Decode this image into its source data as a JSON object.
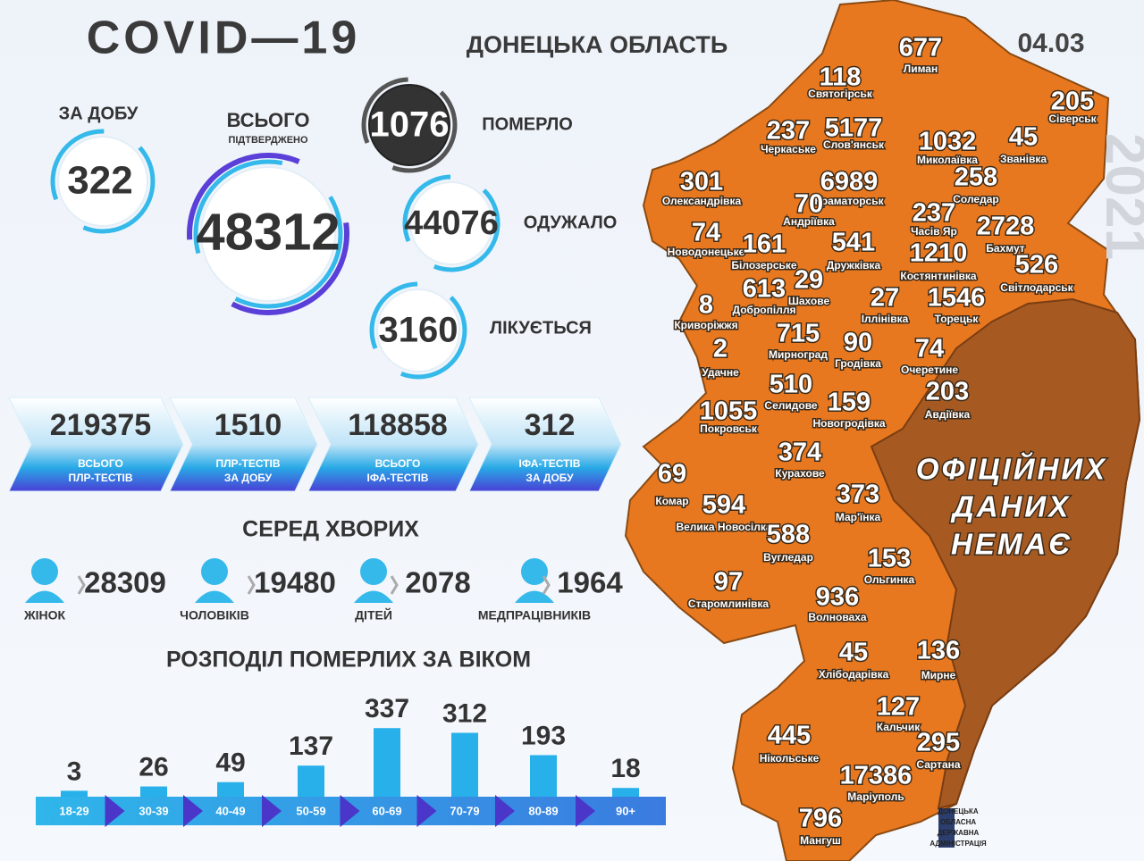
{
  "header": {
    "title": "COVID—19",
    "region": "ДОНЕЦЬКА ОБЛАСТЬ",
    "date": "04.03",
    "year": "2021"
  },
  "summary": {
    "daily": {
      "label": "ЗА ДОБУ",
      "value": 322
    },
    "total": {
      "label": "ВСЬОГО",
      "sublabel": "ПІДТВЕРДЖЕНО",
      "value": 48312
    },
    "died": {
      "label": "ПОМЕРЛО",
      "value": 1076
    },
    "recovered": {
      "label": "ОДУЖАЛО",
      "value": 44076
    },
    "treated": {
      "label": "ЛІКУЄТЬСЯ",
      "value": 3160
    }
  },
  "tests": [
    {
      "value": 219375,
      "label": [
        "ВСЬОГО",
        "ПЛР-ТЕСТІВ"
      ]
    },
    {
      "value": 1510,
      "label": [
        "ПЛР-ТЕСТІВ",
        "ЗА ДОБУ"
      ]
    },
    {
      "value": 118858,
      "label": [
        "ВСЬОГО",
        "ІФА-ТЕСТІВ"
      ]
    },
    {
      "value": 312,
      "label": [
        "ІФА-ТЕСТІВ",
        "ЗА ДОБУ"
      ]
    }
  ],
  "among_sick": {
    "title": "СЕРЕД ХВОРИХ",
    "groups": [
      {
        "label": "ЖІНОК",
        "value": 28309
      },
      {
        "label": "ЧОЛОВІКІВ",
        "value": 19480
      },
      {
        "label": "ДІТЕЙ",
        "value": 2078
      },
      {
        "label": "МЕДПРАЦІВНИКІВ",
        "value": 1964
      }
    ]
  },
  "deaths_by_age": {
    "title": "РОЗПОДІЛ ПОМЕРЛИХ ЗА ВІКОМ",
    "groups": [
      {
        "label": "18-29",
        "value": 3
      },
      {
        "label": "30-39",
        "value": 26
      },
      {
        "label": "40-49",
        "value": 49
      },
      {
        "label": "50-59",
        "value": 137
      },
      {
        "label": "60-69",
        "value": 337
      },
      {
        "label": "70-79",
        "value": 312
      },
      {
        "label": "80-89",
        "value": 193
      },
      {
        "label": "90+",
        "value": 18
      }
    ]
  },
  "map": {
    "no_data": [
      "ОФІЦІЙНИХ",
      "ДАНИХ",
      "НЕМАЄ"
    ],
    "cities": [
      {
        "name": "Лиман",
        "value": 677
      },
      {
        "name": "Святогірськ",
        "value": 118
      },
      {
        "name": "Сіверськ",
        "value": 205
      },
      {
        "name": "Черкаське",
        "value": 237
      },
      {
        "name": "Слов'янськ",
        "value": 5177
      },
      {
        "name": "Миколаївка",
        "value": 1032
      },
      {
        "name": "Званівка",
        "value": 45
      },
      {
        "name": "Олександрівка",
        "value": 301
      },
      {
        "name": "Краматорськ",
        "value": 6989
      },
      {
        "name": "Соледар",
        "value": 258
      },
      {
        "name": "Андріївка",
        "value": 70
      },
      {
        "name": "Часів Яр",
        "value": 237
      },
      {
        "name": "Бахмут",
        "value": 2728
      },
      {
        "name": "Новодонецьке",
        "value": 74
      },
      {
        "name": "Білозерське",
        "value": 161
      },
      {
        "name": "Дружківка",
        "value": 541
      },
      {
        "name": "Костянтинівка",
        "value": 1210
      },
      {
        "name": "Світлодарськ",
        "value": 526
      },
      {
        "name": "Добропілля",
        "value": 613
      },
      {
        "name": "Шахове",
        "value": 29
      },
      {
        "name": "Іллінівка",
        "value": 27
      },
      {
        "name": "Торецьк",
        "value": 1546
      },
      {
        "name": "Криворіжжя",
        "value": 8
      },
      {
        "name": "Мирноград",
        "value": 715
      },
      {
        "name": "Гродівка",
        "value": 90
      },
      {
        "name": "Очеретине",
        "value": 74
      },
      {
        "name": "Удачне",
        "value": 2
      },
      {
        "name": "Селидове",
        "value": 510
      },
      {
        "name": "Новогродівка",
        "value": 159
      },
      {
        "name": "Авдіївка",
        "value": 203
      },
      {
        "name": "Покровськ",
        "value": 1055
      },
      {
        "name": "Курахове",
        "value": 374
      },
      {
        "name": "Комар",
        "value": 69
      },
      {
        "name": "Мар'їнка",
        "value": 373
      },
      {
        "name": "Велика Новосілка",
        "value": 594
      },
      {
        "name": "Вугледар",
        "value": 588
      },
      {
        "name": "Ольгинка",
        "value": 153
      },
      {
        "name": "Старомлинівка",
        "value": 97
      },
      {
        "name": "Волноваха",
        "value": 936
      },
      {
        "name": "Хлібодарівка",
        "value": 45
      },
      {
        "name": "Мирне",
        "value": 136
      },
      {
        "name": "Кальчик",
        "value": 127
      },
      {
        "name": "Нікольське",
        "value": 445
      },
      {
        "name": "Сартана",
        "value": 295
      },
      {
        "name": "Маріуполь",
        "value": 17386
      },
      {
        "name": "Мангуш",
        "value": 796
      }
    ]
  },
  "logo": [
    "ДОНЕЦЬКА",
    "ОБЛАСНА",
    "ДЕРЖАВНА",
    "АДМІНІСТРАЦІЯ"
  ]
}
